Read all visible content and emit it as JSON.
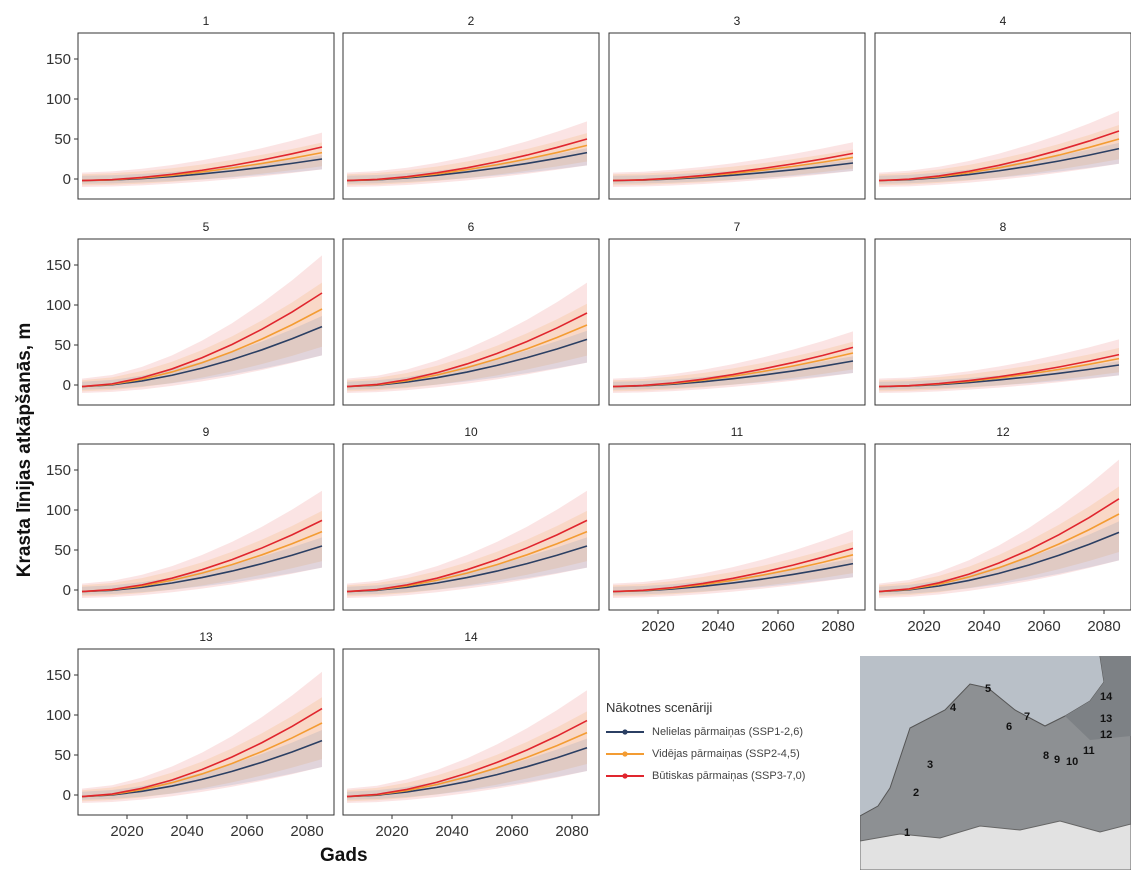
{
  "chart_data": {
    "type": "area",
    "ylabel": "Krasta līnijas atkāpšanās, m",
    "xlabel": "Gads",
    "x_ticks": [
      2020,
      2040,
      2060,
      2080
    ],
    "y_ticks": [
      0,
      50,
      100,
      150
    ],
    "xlim": [
      2005,
      2085
    ],
    "ylim": [
      -20,
      170
    ],
    "x": [
      2005,
      2015,
      2025,
      2035,
      2045,
      2055,
      2065,
      2075,
      2085
    ],
    "grid": false,
    "legend": {
      "title": "Nākotnes scenāriji",
      "position": "bottom-right",
      "entries": [
        {
          "name": "Nelielas pārmaiņas (SSP1-2,6)",
          "color": "#2b3f63"
        },
        {
          "name": "Vidējas pārmaiņas (SSP2-4,5)",
          "color": "#f39c33"
        },
        {
          "name": "Būtiskas pārmaiņas (SSP3-7,0)",
          "color": "#e0262e"
        }
      ]
    },
    "panels": [
      {
        "title": "1",
        "end_values": [
          25,
          33,
          40
        ],
        "upper": 58,
        "lower": 12
      },
      {
        "title": "2",
        "end_values": [
          33,
          42,
          50
        ],
        "upper": 72,
        "lower": 17
      },
      {
        "title": "3",
        "end_values": [
          20,
          27,
          32
        ],
        "upper": 46,
        "lower": 10
      },
      {
        "title": "4",
        "end_values": [
          38,
          50,
          60
        ],
        "upper": 85,
        "lower": 19
      },
      {
        "title": "5",
        "end_values": [
          73,
          95,
          115
        ],
        "upper": 162,
        "lower": 37
      },
      {
        "title": "6",
        "end_values": [
          57,
          75,
          90
        ],
        "upper": 128,
        "lower": 28
      },
      {
        "title": "7",
        "end_values": [
          30,
          40,
          47
        ],
        "upper": 67,
        "lower": 15
      },
      {
        "title": "8",
        "end_values": [
          25,
          33,
          38
        ],
        "upper": 57,
        "lower": 12
      },
      {
        "title": "9",
        "end_values": [
          55,
          73,
          87
        ],
        "upper": 124,
        "lower": 28
      },
      {
        "title": "10",
        "end_values": [
          55,
          73,
          87
        ],
        "upper": 124,
        "lower": 28
      },
      {
        "title": "11",
        "end_values": [
          33,
          44,
          52
        ],
        "upper": 75,
        "lower": 16
      },
      {
        "title": "12",
        "end_values": [
          72,
          95,
          114
        ],
        "upper": 163,
        "lower": 37
      },
      {
        "title": "13",
        "end_values": [
          68,
          90,
          108
        ],
        "upper": 154,
        "lower": 35
      },
      {
        "title": "14",
        "end_values": [
          59,
          78,
          93
        ],
        "upper": 131,
        "lower": 30
      }
    ],
    "map_labels": [
      "1",
      "2",
      "3",
      "4",
      "5",
      "6",
      "7",
      "8",
      "9",
      "10",
      "11",
      "12",
      "13",
      "14"
    ]
  }
}
